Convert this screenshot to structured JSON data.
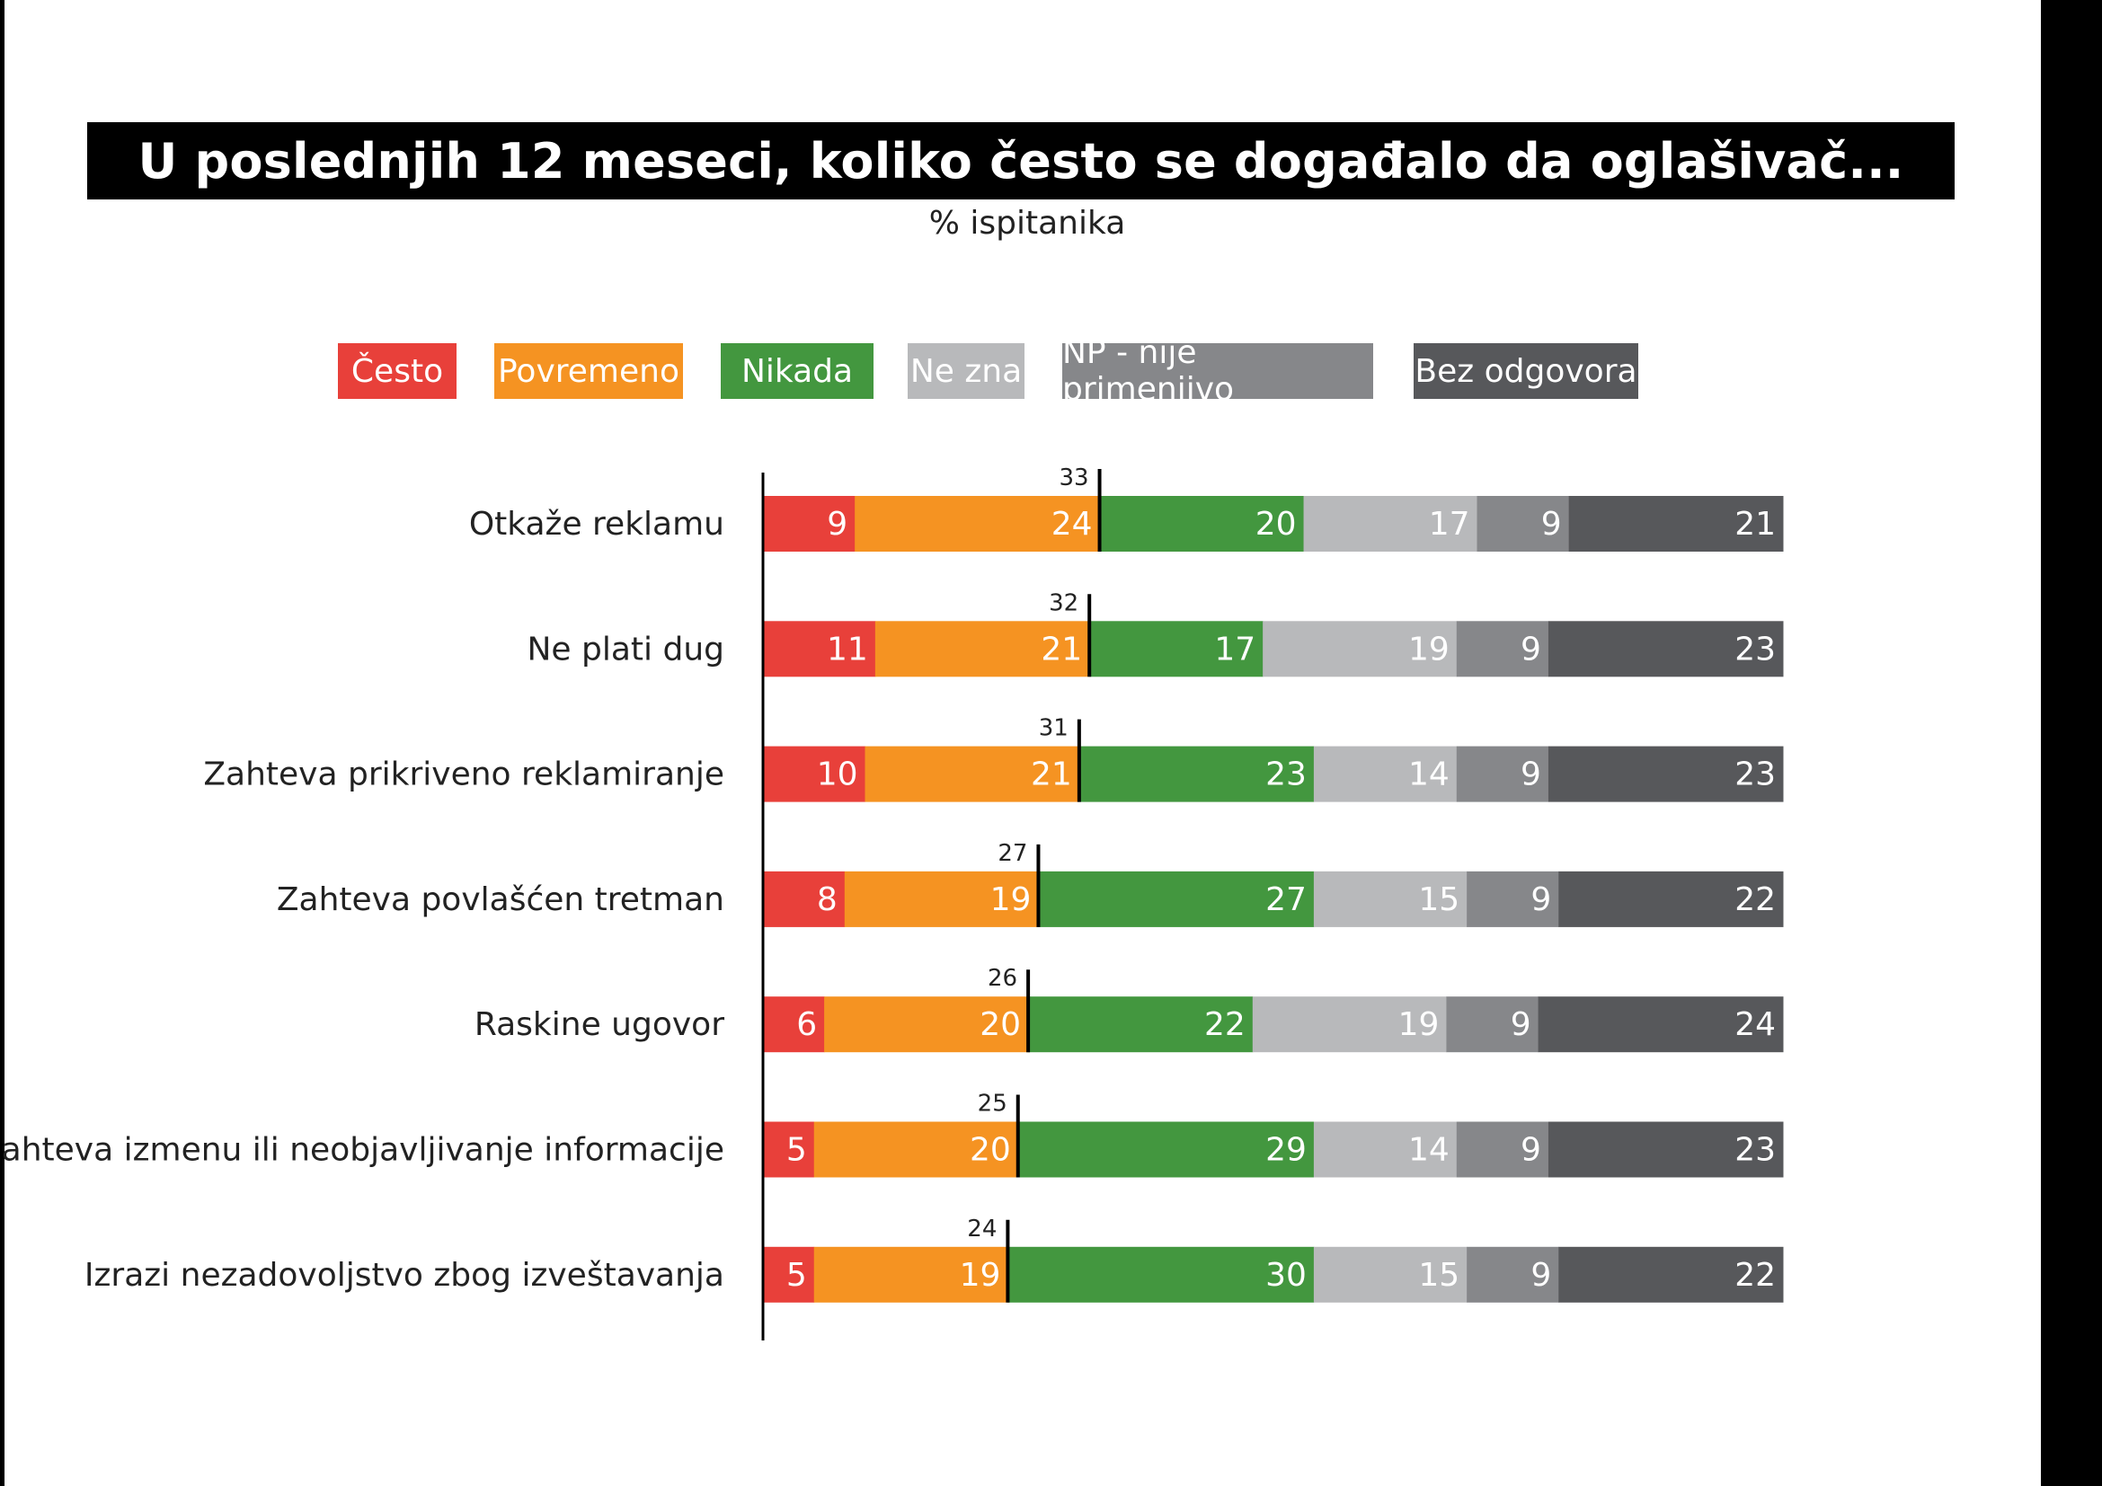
{
  "title": "U poslednjih 12 meseci, koliko često se događalo da oglašivač...",
  "subtitle": "% ispitanika",
  "chart_data": {
    "type": "bar",
    "orientation": "horizontal",
    "stacked": true,
    "title": "U poslednjih 12 meseci, koliko često se događalo da oglašivač...",
    "subtitle": "% ispitanika",
    "legend_position": "top",
    "categories": [
      "Otkaže reklamu",
      "Ne plati dug",
      "Zahteva prikriveno reklamiranje",
      "Zahteva povlašćen tretman",
      "Raskine ugovor",
      "Zahteva izmenu ili neobjavljivanje informacije",
      "Izrazi nezadovoljstvo zbog izveštavanja"
    ],
    "series": [
      {
        "name": "Često",
        "color": "#e8403a",
        "values": [
          9,
          11,
          10,
          8,
          6,
          5,
          5
        ]
      },
      {
        "name": "Povremeno",
        "color": "#f59322",
        "values": [
          24,
          21,
          21,
          19,
          20,
          20,
          19
        ]
      },
      {
        "name": "Nikada",
        "color": "#43973f",
        "values": [
          20,
          17,
          23,
          27,
          22,
          29,
          30
        ]
      },
      {
        "name": "Ne zna",
        "color": "#b8b9bb",
        "values": [
          17,
          19,
          14,
          15,
          19,
          14,
          15
        ]
      },
      {
        "name": "NP - nije primenjivo",
        "color": "#86878a",
        "values": [
          9,
          9,
          9,
          9,
          9,
          9,
          9
        ]
      },
      {
        "name": "Bez odgovora",
        "color": "#57585b",
        "values": [
          21,
          23,
          23,
          22,
          24,
          23,
          22
        ]
      }
    ],
    "totals_marker": {
      "values": [
        33,
        32,
        31,
        27,
        26,
        25,
        24
      ]
    },
    "grid": false
  }
}
